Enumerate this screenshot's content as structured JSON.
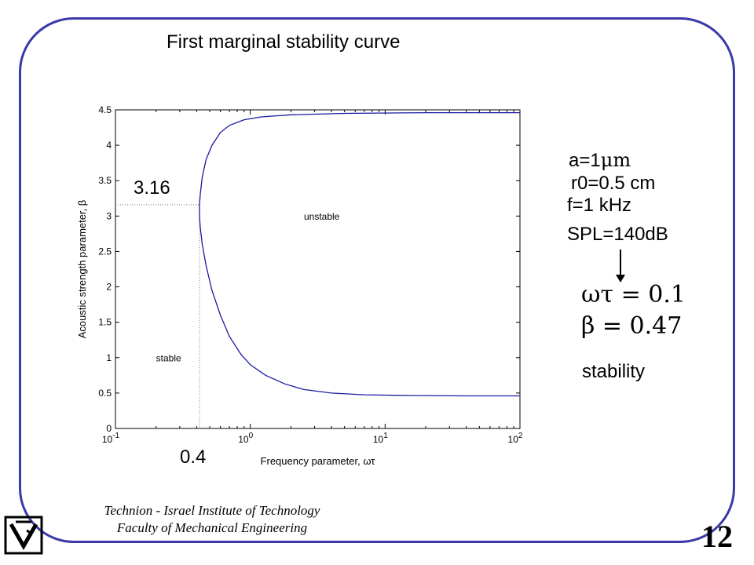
{
  "slide": {
    "title": "First marginal stability curve",
    "page_number": "12"
  },
  "params": {
    "a_prefix": "a=1",
    "a_unit": "μm",
    "r0": "r0=0.5 cm",
    "f": "f=1 kHz",
    "spl": "SPL=140dB"
  },
  "result": {
    "omega_tau": "ωτ = 0.1",
    "beta": "β = 0.47",
    "conclusion": "stability"
  },
  "footer": {
    "line1": "Technion - Israel Institute of Technology",
    "line2": "Faculty of Mechanical Engineering"
  },
  "callouts": {
    "beta_value": "3.16",
    "freq_value": "0.4"
  },
  "chart_data": {
    "type": "line",
    "xlabel": "Frequency parameter, ωτ",
    "ylabel": "Acoustic strength parameter, β",
    "xscale": "log",
    "xlim": [
      0.1,
      100
    ],
    "ylim": [
      0,
      4.5
    ],
    "xticks": [
      {
        "value": 0.1,
        "base": "10",
        "exp": "-1"
      },
      {
        "value": 1,
        "base": "10",
        "exp": "0"
      },
      {
        "value": 10,
        "base": "10",
        "exp": "1"
      },
      {
        "value": 100,
        "base": "10",
        "exp": "2"
      }
    ],
    "yticks": [
      "0",
      "0.5",
      "1",
      "1.5",
      "2",
      "2.5",
      "3",
      "3.5",
      "4",
      "4.5"
    ],
    "region_labels": {
      "stable": "stable",
      "unstable": "unstable"
    },
    "series": [
      {
        "color": "#1a1aa0",
        "points": [
          [
            100,
            4.46
          ],
          [
            20,
            4.46
          ],
          [
            5,
            4.45
          ],
          [
            2,
            4.43
          ],
          [
            1.2,
            4.4
          ],
          [
            0.9,
            4.36
          ],
          [
            0.7,
            4.28
          ],
          [
            0.6,
            4.18
          ],
          [
            0.52,
            4.0
          ],
          [
            0.47,
            3.8
          ],
          [
            0.44,
            3.55
          ],
          [
            0.425,
            3.3
          ],
          [
            0.42,
            3.16
          ],
          [
            0.42,
            3.0
          ],
          [
            0.425,
            2.85
          ],
          [
            0.44,
            2.6
          ],
          [
            0.47,
            2.3
          ],
          [
            0.52,
            1.95
          ],
          [
            0.6,
            1.6
          ],
          [
            0.7,
            1.3
          ],
          [
            0.85,
            1.05
          ],
          [
            1.0,
            0.9
          ],
          [
            1.3,
            0.75
          ],
          [
            1.8,
            0.63
          ],
          [
            2.5,
            0.55
          ],
          [
            4,
            0.5
          ],
          [
            7,
            0.475
          ],
          [
            15,
            0.465
          ],
          [
            40,
            0.46
          ],
          [
            100,
            0.46
          ]
        ]
      }
    ],
    "guides": {
      "x": 0.42,
      "y": 3.16
    }
  }
}
